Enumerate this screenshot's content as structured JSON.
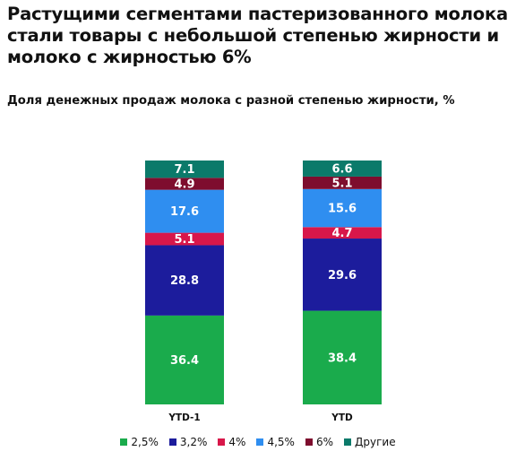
{
  "title": "Растущими сегментами пастеризованного молока стали товары с небольшой степенью жирности и молоко с жирностью 6%",
  "subtitle": "Доля денежных продаж молока с разной степенью жирности, %",
  "chart_data": {
    "type": "bar",
    "stacked": true,
    "categories": [
      "YTD-1",
      "YTD"
    ],
    "series": [
      {
        "name": "2,5%",
        "color": "#1aab4c",
        "values": [
          36.4,
          38.4
        ]
      },
      {
        "name": "3,2%",
        "color": "#1c1c9c",
        "values": [
          28.8,
          29.6
        ]
      },
      {
        "name": "4%",
        "color": "#d8174a",
        "values": [
          5.1,
          4.7
        ]
      },
      {
        "name": "4,5%",
        "color": "#2f8ef0",
        "values": [
          17.6,
          15.6
        ]
      },
      {
        "name": "6%",
        "color": "#7e0d2e",
        "values": [
          4.9,
          5.1
        ]
      },
      {
        "name": "Другие",
        "color": "#0b7a6a",
        "values": [
          7.1,
          6.6
        ]
      }
    ],
    "ylim": [
      0,
      100
    ],
    "legend_position": "bottom",
    "grid": false
  }
}
